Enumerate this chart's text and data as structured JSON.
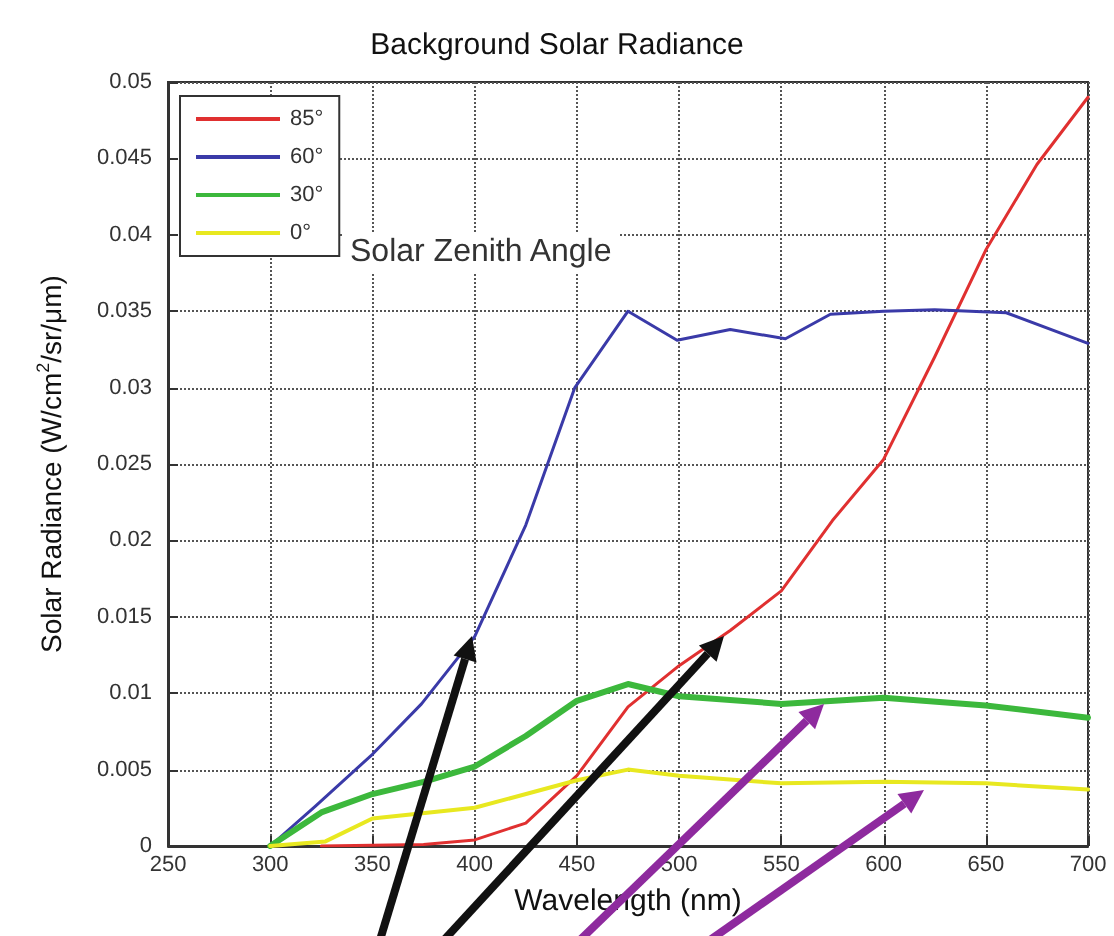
{
  "chart_data": {
    "type": "line",
    "title": "Background Solar Radiance",
    "xlabel": "Wavelength (nm)",
    "ylabel": "Solar Radiance (W/cm$^{2}$/sr/μm)",
    "legend_title": "Solar Zenith Angle",
    "series": [
      {
        "name": "85°",
        "color": "#e03030",
        "x": [
          325,
          375,
          400,
          425,
          450,
          475,
          500,
          525,
          550,
          575,
          600,
          625,
          650,
          675,
          700
        ],
        "values": [
          0,
          0.0001,
          0.0004,
          0.0015,
          0.0046,
          0.0091,
          0.0118,
          0.0141,
          0.0167,
          0.0213,
          0.0253,
          0.032,
          0.039,
          0.0446,
          0.049
        ]
      },
      {
        "name": "60°",
        "color": "#3a3aa8",
        "x": [
          300,
          322,
          350,
          374,
          400,
          425,
          449,
          475,
          499,
          525,
          552,
          574,
          600,
          625,
          660,
          700
        ],
        "values": [
          0,
          0.0026,
          0.006,
          0.0093,
          0.0137,
          0.021,
          0.03,
          0.035,
          0.0331,
          0.0338,
          0.0332,
          0.0348,
          0.035,
          0.0351,
          0.0349,
          0.0329
        ]
      },
      {
        "name": "30°",
        "color": "#3cb83c",
        "x": [
          300,
          325,
          350,
          375,
          400,
          425,
          450,
          475,
          500,
          550,
          600,
          650,
          700
        ],
        "values": [
          0,
          0.0022,
          0.0034,
          0.0042,
          0.0052,
          0.0072,
          0.0095,
          0.0106,
          0.0098,
          0.0093,
          0.0097,
          0.0092,
          0.0084
        ]
      },
      {
        "name": "0°",
        "color": "#e8e820",
        "x": [
          300,
          327,
          350,
          400,
          450,
          475,
          500,
          550,
          600,
          650,
          700
        ],
        "values": [
          0,
          0.0003,
          0.0018,
          0.0025,
          0.0043,
          0.005,
          0.0046,
          0.0041,
          0.0042,
          0.0041,
          0.0037
        ]
      }
    ],
    "xlim": [
      250,
      700
    ],
    "xticks": [
      250,
      300,
      350,
      400,
      450,
      500,
      550,
      600,
      650,
      700
    ],
    "ylim": [
      0,
      0.05
    ],
    "yticks": [
      0,
      0.005,
      0.01,
      0.015,
      0.02,
      0.025,
      0.03,
      0.035,
      0.04,
      0.045,
      0.05
    ],
    "grid": true,
    "legend": "top left",
    "marker": "none",
    "line_style": "solid"
  }
}
